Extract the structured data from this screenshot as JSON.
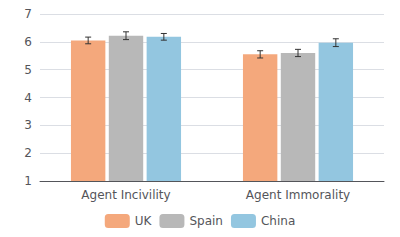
{
  "chart_data": {
    "type": "bar",
    "categories": [
      "Agent Incivility",
      "Agent Immorality"
    ],
    "series": [
      {
        "name": "UK",
        "color": "#F4A87C",
        "values": [
          6.05,
          5.55
        ],
        "errors": [
          0.12,
          0.13
        ]
      },
      {
        "name": "Spain",
        "color": "#B8B8B8",
        "values": [
          6.22,
          5.6
        ],
        "errors": [
          0.14,
          0.13
        ]
      },
      {
        "name": "China",
        "color": "#93C6E0",
        "values": [
          6.18,
          5.97
        ],
        "errors": [
          0.12,
          0.14
        ]
      }
    ],
    "ylim": [
      1,
      7
    ],
    "yticks": [
      1,
      2,
      3,
      4,
      5,
      6,
      7
    ],
    "grid": true,
    "legend": "bottom"
  }
}
